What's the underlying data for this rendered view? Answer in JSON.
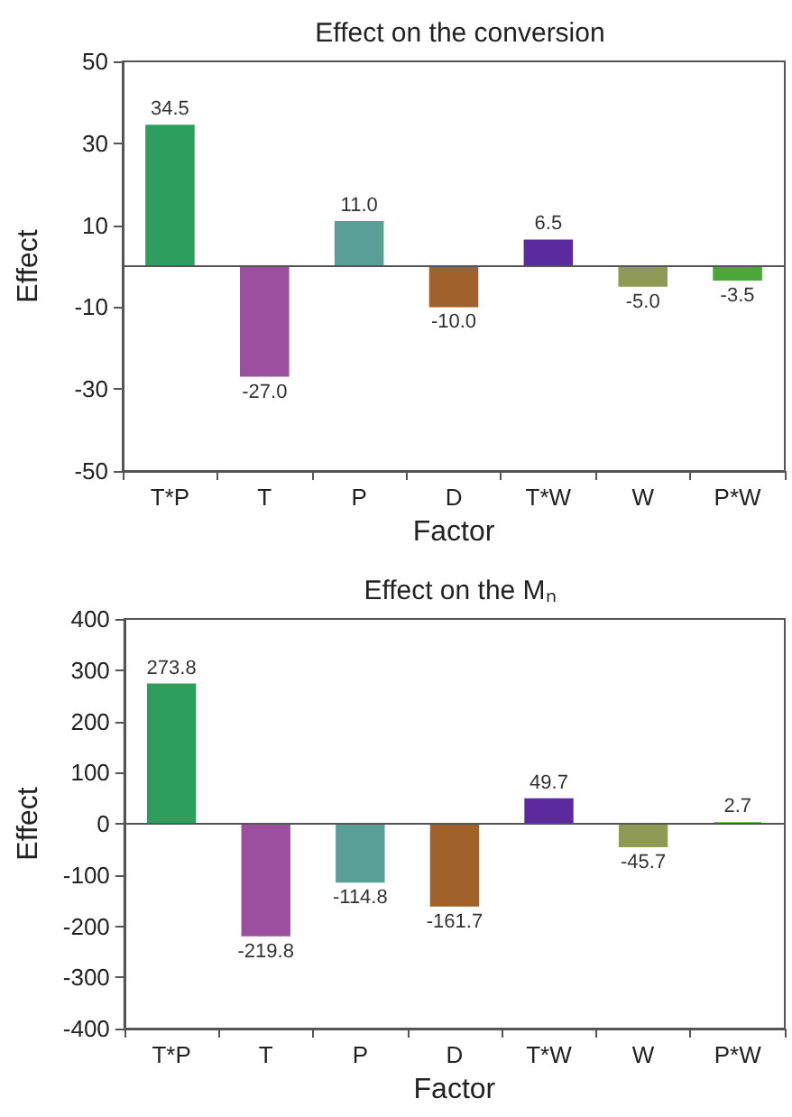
{
  "chart_data": [
    {
      "type": "bar",
      "title": "Effect on the conversion",
      "xlabel": "Factor",
      "ylabel": "Effect",
      "categories": [
        "T*P",
        "T",
        "P",
        "D",
        "T*W",
        "W",
        "P*W"
      ],
      "values": [
        34.5,
        -27.0,
        11.0,
        -10.0,
        6.5,
        -5.0,
        -3.5
      ],
      "colors": [
        "#2e9e5e",
        "#9b4f9e",
        "#5a9e98",
        "#a0622a",
        "#5b2a9e",
        "#8f9a55",
        "#4aa83a"
      ],
      "value_labels": [
        "34.5",
        "-27.0",
        "11.0",
        "-10.0",
        "6.5",
        "-5.0",
        "-3.5"
      ],
      "ylim": [
        -50,
        50
      ],
      "yticks": [
        -50,
        -30,
        -10,
        10,
        30,
        50
      ],
      "ref_lines": [
        {
          "axis": "y",
          "value": 0
        }
      ]
    },
    {
      "type": "bar",
      "title": "Effect on the Mₙ",
      "xlabel": "Factor",
      "ylabel": "Effect",
      "categories": [
        "T*P",
        "T",
        "P",
        "D",
        "T*W",
        "W",
        "P*W"
      ],
      "values": [
        273.8,
        -219.8,
        -114.8,
        -161.7,
        49.7,
        -45.7,
        2.7
      ],
      "colors": [
        "#2e9e5e",
        "#9b4f9e",
        "#5a9e98",
        "#a0622a",
        "#5b2a9e",
        "#8f9a55",
        "#4aa83a"
      ],
      "value_labels": [
        "273.8",
        "-219.8",
        "-114.8",
        "-161.7",
        "49.7",
        "-45.7",
        "2.7"
      ],
      "ylim": [
        -400,
        400
      ],
      "yticks": [
        -400,
        -300,
        -200,
        -100,
        0,
        100,
        200,
        300,
        400
      ],
      "ref_lines": [
        {
          "axis": "y",
          "value": 0
        }
      ]
    }
  ]
}
